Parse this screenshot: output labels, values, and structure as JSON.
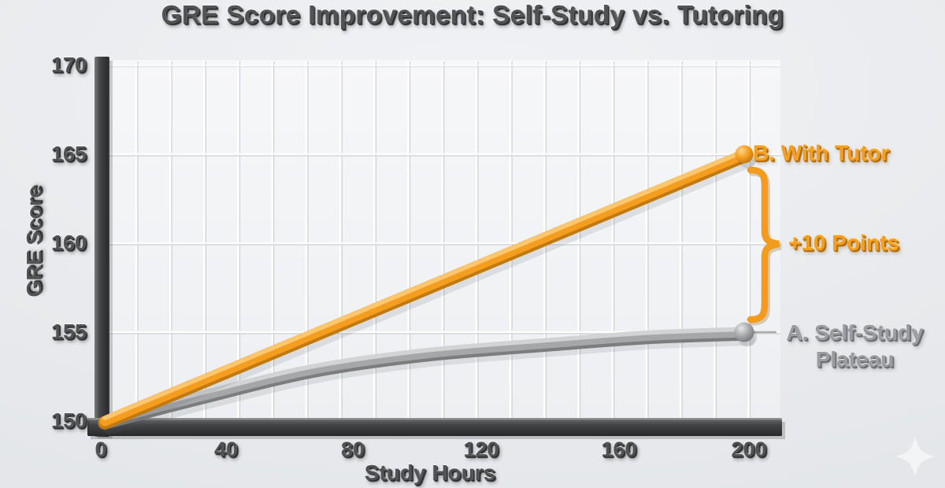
{
  "labels": {
    "title": "GRE Score Improvement: Self-Study vs. Tutoring",
    "y_axis_title": "GRE Score",
    "x_axis_title": "Study Hours"
  },
  "annotations": {
    "tutor_end_label": "B. With Tutor",
    "gap_label": "+10 Points",
    "selfstudy_line1": "A. Self-Study",
    "selfstudy_line2": "Plateau"
  },
  "axes": {
    "y_tick_labels": [
      "150",
      "155",
      "160",
      "165",
      "170"
    ],
    "x_tick_labels": [
      "0",
      "40",
      "80",
      "120",
      "160",
      "200"
    ]
  },
  "colors": {
    "tutor_orange": "#f49d1e",
    "tutor_orange_dark": "#c17a10",
    "tutor_orange_light": "#ffcf7d",
    "selfstudy_gray": "#a6a7a9",
    "selfstudy_gray_dark": "#7c7d7f",
    "selfstudy_gray_light": "#d9dadc",
    "axis_dark": "#3b3c3e",
    "text_dark": "#515255",
    "background": "#e8eaed",
    "plot_background": "#f3f4f6",
    "gridline": "#ffffff"
  },
  "watermark": {
    "icon": "sparkle-icon"
  },
  "chart_data": {
    "type": "line",
    "title": "GRE Score Improvement: Self-Study vs. Tutoring",
    "xlabel": "Study Hours",
    "ylabel": "GRE Score",
    "xlim": [
      0,
      210
    ],
    "ylim": [
      150,
      170
    ],
    "x_ticks": [
      0,
      40,
      80,
      120,
      160,
      200
    ],
    "y_ticks": [
      150,
      155,
      160,
      165,
      170
    ],
    "grid": true,
    "legend_position": "right-of-line-endpoints",
    "series": [
      {
        "name": "B. With Tutor",
        "color": "#f49d1e",
        "shape": "linear",
        "x": [
          0,
          200
        ],
        "y": [
          150,
          165
        ],
        "end_label": "B. With Tutor"
      },
      {
        "name": "A. Self-Study Plateau",
        "color": "#a6a7a9",
        "shape": "plateau-curve",
        "x": [
          0,
          30,
          65,
          100,
          140,
          170,
          200
        ],
        "y": [
          150,
          151.4,
          152.9,
          153.8,
          154.4,
          154.8,
          155
        ],
        "end_label": "A. Self-Study Plateau"
      }
    ],
    "annotations": [
      {
        "type": "brace",
        "label": "+10 Points",
        "at_x": 200,
        "from_value": 155,
        "to_value": 165
      }
    ]
  }
}
